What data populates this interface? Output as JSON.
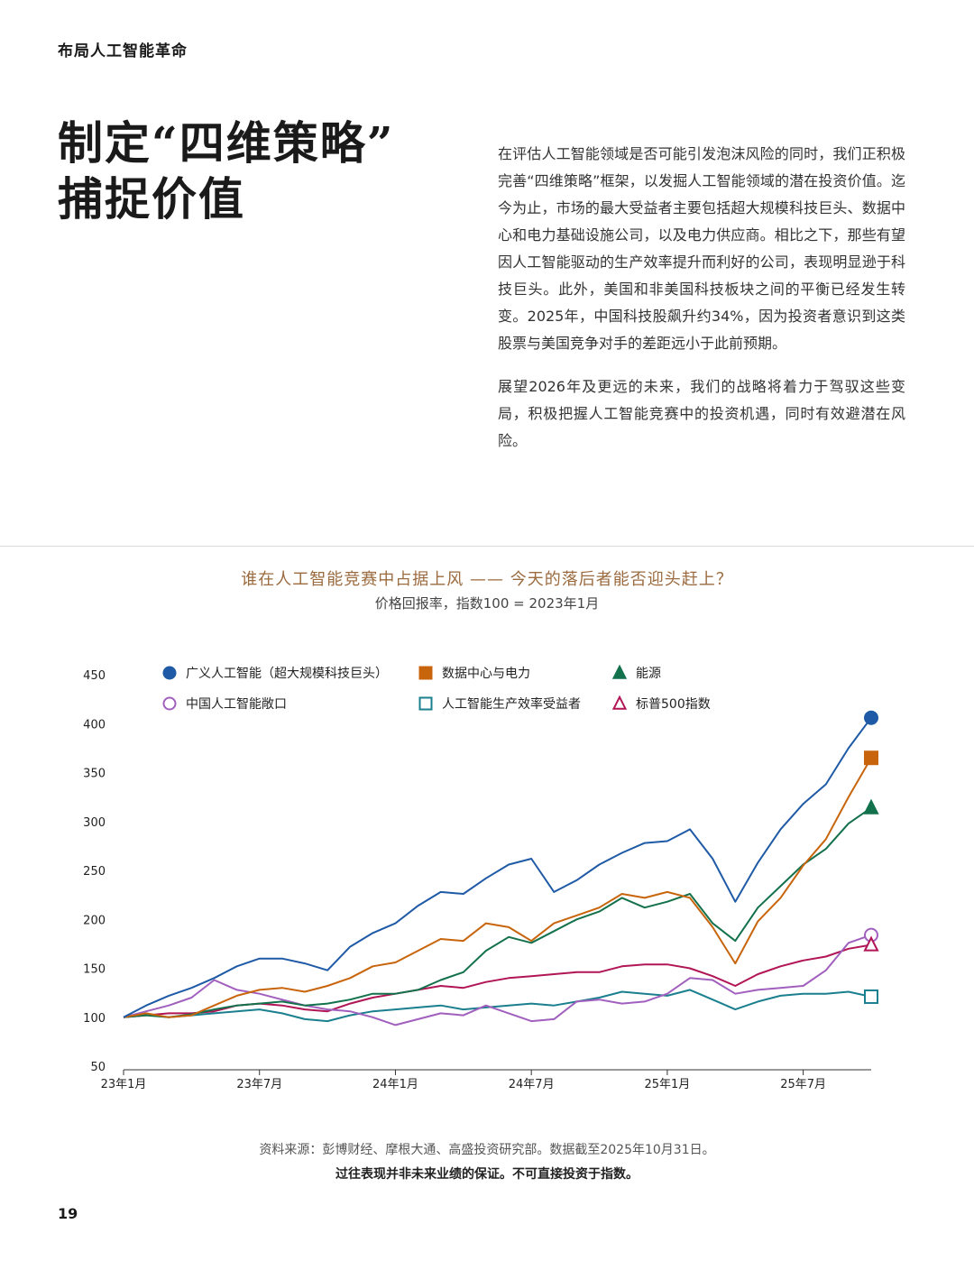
{
  "page": {
    "running_head": "布局人工智能革命",
    "headline": [
      "制定“四维策略”",
      "捕捉价值"
    ],
    "paragraphs": [
      "在评估人工智能领域是否可能引发泡沫风险的同时，我们正积极完善“四维策略”框架，以发掘人工智能领域的潜在投资价值。迄今为止，市场的最大受益者主要包括超大规模科技巨头、数据中心和电力基础设施公司，以及电力供应商。相比之下，那些有望因人工智能驱动的生产效率提升而利好的公司，表现明显逊于科技巨头。此外，美国和非美国科技板块之间的平衡已经发生转变。2025年，中国科技股飙升约34%，因为投资者意识到这类股票与美国竞争对手的差距远小于此前预期。",
      "展望2026年及更远的未来，我们的战略将着力于驾驭这些变局，积极把握人工智能竞赛中的投资机遇，同时有效避潜在风险。"
    ],
    "source": "资料来源：彭博财经、摩根大通、高盛投资研究部。数据截至2025年10月31日。",
    "disclaimer": "过往表现并非未来业绩的保证。不可直接投资于指数。",
    "page_number": "19"
  },
  "chart_data": {
    "type": "line",
    "title": "谁在人工智能竞赛中占据上风 —— 今天的落后者能否迎头赶上？",
    "subtitle": "价格回报率，指数100 = 2023年1月",
    "ylim": [
      50,
      450
    ],
    "yticks": [
      50,
      100,
      150,
      200,
      250,
      300,
      350,
      400,
      450
    ],
    "x_range": [
      "2023-01",
      "2025-10"
    ],
    "xticks": [
      {
        "label": "23年1月",
        "month": "2023-01"
      },
      {
        "label": "23年7月",
        "month": "2023-07"
      },
      {
        "label": "24年1月",
        "month": "2024-01"
      },
      {
        "label": "24年7月",
        "month": "2024-07"
      },
      {
        "label": "25年1月",
        "month": "2025-01"
      },
      {
        "label": "25年7月",
        "month": "2025-07"
      }
    ],
    "grid": false,
    "legend_position": "top",
    "series": [
      {
        "name": "广义人工智能（超大规模科技巨头）",
        "color": "#1f5aa6",
        "marker": "circle-filled",
        "points": [
          [
            "2023-01",
            100
          ],
          [
            "2023-02",
            112
          ],
          [
            "2023-03",
            122
          ],
          [
            "2023-04",
            130
          ],
          [
            "2023-05",
            140
          ],
          [
            "2023-06",
            152
          ],
          [
            "2023-07",
            160
          ],
          [
            "2023-08",
            160
          ],
          [
            "2023-09",
            155
          ],
          [
            "2023-10",
            148
          ],
          [
            "2023-11",
            172
          ],
          [
            "2023-12",
            186
          ],
          [
            "2024-01",
            196
          ],
          [
            "2024-02",
            214
          ],
          [
            "2024-03",
            228
          ],
          [
            "2024-04",
            226
          ],
          [
            "2024-05",
            242
          ],
          [
            "2024-06",
            256
          ],
          [
            "2024-07",
            262
          ],
          [
            "2024-08",
            228
          ],
          [
            "2024-09",
            240
          ],
          [
            "2024-10",
            256
          ],
          [
            "2024-11",
            268
          ],
          [
            "2024-12",
            278
          ],
          [
            "2025-01",
            280
          ],
          [
            "2025-02",
            292
          ],
          [
            "2025-03",
            262
          ],
          [
            "2025-04",
            218
          ],
          [
            "2025-05",
            258
          ],
          [
            "2025-06",
            292
          ],
          [
            "2025-07",
            318
          ],
          [
            "2025-08",
            338
          ],
          [
            "2025-09",
            375
          ],
          [
            "2025-10",
            406
          ]
        ]
      },
      {
        "name": "数据中心与电力",
        "color": "#c8650c",
        "marker": "square-filled",
        "points": [
          [
            "2023-01",
            100
          ],
          [
            "2023-02",
            104
          ],
          [
            "2023-03",
            100
          ],
          [
            "2023-04",
            102
          ],
          [
            "2023-05",
            112
          ],
          [
            "2023-06",
            122
          ],
          [
            "2023-07",
            128
          ],
          [
            "2023-08",
            130
          ],
          [
            "2023-09",
            126
          ],
          [
            "2023-10",
            132
          ],
          [
            "2023-11",
            140
          ],
          [
            "2023-12",
            152
          ],
          [
            "2024-01",
            156
          ],
          [
            "2024-02",
            168
          ],
          [
            "2024-03",
            180
          ],
          [
            "2024-04",
            178
          ],
          [
            "2024-05",
            196
          ],
          [
            "2024-06",
            192
          ],
          [
            "2024-07",
            178
          ],
          [
            "2024-08",
            196
          ],
          [
            "2024-09",
            204
          ],
          [
            "2024-10",
            212
          ],
          [
            "2024-11",
            226
          ],
          [
            "2024-12",
            222
          ],
          [
            "2025-01",
            228
          ],
          [
            "2025-02",
            222
          ],
          [
            "2025-03",
            192
          ],
          [
            "2025-04",
            155
          ],
          [
            "2025-05",
            198
          ],
          [
            "2025-06",
            222
          ],
          [
            "2025-07",
            255
          ],
          [
            "2025-08",
            282
          ],
          [
            "2025-09",
            325
          ],
          [
            "2025-10",
            365
          ]
        ]
      },
      {
        "name": "能源",
        "color": "#13714c",
        "marker": "triangle-filled",
        "points": [
          [
            "2023-01",
            100
          ],
          [
            "2023-02",
            102
          ],
          [
            "2023-03",
            100
          ],
          [
            "2023-04",
            103
          ],
          [
            "2023-05",
            108
          ],
          [
            "2023-06",
            112
          ],
          [
            "2023-07",
            114
          ],
          [
            "2023-08",
            116
          ],
          [
            "2023-09",
            112
          ],
          [
            "2023-10",
            114
          ],
          [
            "2023-11",
            118
          ],
          [
            "2023-12",
            124
          ],
          [
            "2024-01",
            124
          ],
          [
            "2024-02",
            128
          ],
          [
            "2024-03",
            138
          ],
          [
            "2024-04",
            146
          ],
          [
            "2024-05",
            168
          ],
          [
            "2024-06",
            182
          ],
          [
            "2024-07",
            176
          ],
          [
            "2024-08",
            188
          ],
          [
            "2024-09",
            200
          ],
          [
            "2024-10",
            208
          ],
          [
            "2024-11",
            222
          ],
          [
            "2024-12",
            212
          ],
          [
            "2025-01",
            218
          ],
          [
            "2025-02",
            226
          ],
          [
            "2025-03",
            196
          ],
          [
            "2025-04",
            178
          ],
          [
            "2025-05",
            212
          ],
          [
            "2025-06",
            234
          ],
          [
            "2025-07",
            256
          ],
          [
            "2025-08",
            272
          ],
          [
            "2025-09",
            298
          ],
          [
            "2025-10",
            314
          ]
        ]
      },
      {
        "name": "中国人工智能敞口",
        "color": "#a15fbe",
        "marker": "circle-open",
        "points": [
          [
            "2023-01",
            100
          ],
          [
            "2023-02",
            106
          ],
          [
            "2023-03",
            112
          ],
          [
            "2023-04",
            120
          ],
          [
            "2023-05",
            138
          ],
          [
            "2023-06",
            128
          ],
          [
            "2023-07",
            124
          ],
          [
            "2023-08",
            118
          ],
          [
            "2023-09",
            112
          ],
          [
            "2023-10",
            108
          ],
          [
            "2023-11",
            106
          ],
          [
            "2023-12",
            100
          ],
          [
            "2024-01",
            92
          ],
          [
            "2024-02",
            98
          ],
          [
            "2024-03",
            104
          ],
          [
            "2024-04",
            102
          ],
          [
            "2024-05",
            112
          ],
          [
            "2024-06",
            104
          ],
          [
            "2024-07",
            96
          ],
          [
            "2024-08",
            98
          ],
          [
            "2024-09",
            116
          ],
          [
            "2024-10",
            118
          ],
          [
            "2024-11",
            114
          ],
          [
            "2024-12",
            116
          ],
          [
            "2025-01",
            124
          ],
          [
            "2025-02",
            140
          ],
          [
            "2025-03",
            138
          ],
          [
            "2025-04",
            124
          ],
          [
            "2025-05",
            128
          ],
          [
            "2025-06",
            130
          ],
          [
            "2025-07",
            132
          ],
          [
            "2025-08",
            148
          ],
          [
            "2025-09",
            176
          ],
          [
            "2025-10",
            184
          ]
        ]
      },
      {
        "name": "人工智能生产效率受益者",
        "color": "#1a7f8e",
        "marker": "square-open",
        "points": [
          [
            "2023-01",
            100
          ],
          [
            "2023-02",
            103
          ],
          [
            "2023-03",
            100
          ],
          [
            "2023-04",
            102
          ],
          [
            "2023-05",
            104
          ],
          [
            "2023-06",
            106
          ],
          [
            "2023-07",
            108
          ],
          [
            "2023-08",
            104
          ],
          [
            "2023-09",
            98
          ],
          [
            "2023-10",
            96
          ],
          [
            "2023-11",
            102
          ],
          [
            "2023-12",
            106
          ],
          [
            "2024-01",
            108
          ],
          [
            "2024-02",
            110
          ],
          [
            "2024-03",
            112
          ],
          [
            "2024-04",
            108
          ],
          [
            "2024-05",
            110
          ],
          [
            "2024-06",
            112
          ],
          [
            "2024-07",
            114
          ],
          [
            "2024-08",
            112
          ],
          [
            "2024-09",
            116
          ],
          [
            "2024-10",
            120
          ],
          [
            "2024-11",
            126
          ],
          [
            "2024-12",
            124
          ],
          [
            "2025-01",
            122
          ],
          [
            "2025-02",
            128
          ],
          [
            "2025-03",
            118
          ],
          [
            "2025-04",
            108
          ],
          [
            "2025-05",
            116
          ],
          [
            "2025-06",
            122
          ],
          [
            "2025-07",
            124
          ],
          [
            "2025-08",
            124
          ],
          [
            "2025-09",
            126
          ],
          [
            "2025-10",
            121
          ]
        ]
      },
      {
        "name": "标普500指数",
        "color": "#b11556",
        "marker": "triangle-open",
        "points": [
          [
            "2023-01",
            100
          ],
          [
            "2023-02",
            102
          ],
          [
            "2023-03",
            104
          ],
          [
            "2023-04",
            104
          ],
          [
            "2023-05",
            106
          ],
          [
            "2023-06",
            112
          ],
          [
            "2023-07",
            114
          ],
          [
            "2023-08",
            112
          ],
          [
            "2023-09",
            108
          ],
          [
            "2023-10",
            106
          ],
          [
            "2023-11",
            114
          ],
          [
            "2023-12",
            120
          ],
          [
            "2024-01",
            124
          ],
          [
            "2024-02",
            128
          ],
          [
            "2024-03",
            132
          ],
          [
            "2024-04",
            130
          ],
          [
            "2024-05",
            136
          ],
          [
            "2024-06",
            140
          ],
          [
            "2024-07",
            142
          ],
          [
            "2024-08",
            144
          ],
          [
            "2024-09",
            146
          ],
          [
            "2024-10",
            146
          ],
          [
            "2024-11",
            152
          ],
          [
            "2024-12",
            154
          ],
          [
            "2025-01",
            154
          ],
          [
            "2025-02",
            150
          ],
          [
            "2025-03",
            142
          ],
          [
            "2025-04",
            132
          ],
          [
            "2025-05",
            144
          ],
          [
            "2025-06",
            152
          ],
          [
            "2025-07",
            158
          ],
          [
            "2025-08",
            162
          ],
          [
            "2025-09",
            170
          ],
          [
            "2025-10",
            174
          ]
        ]
      }
    ]
  }
}
